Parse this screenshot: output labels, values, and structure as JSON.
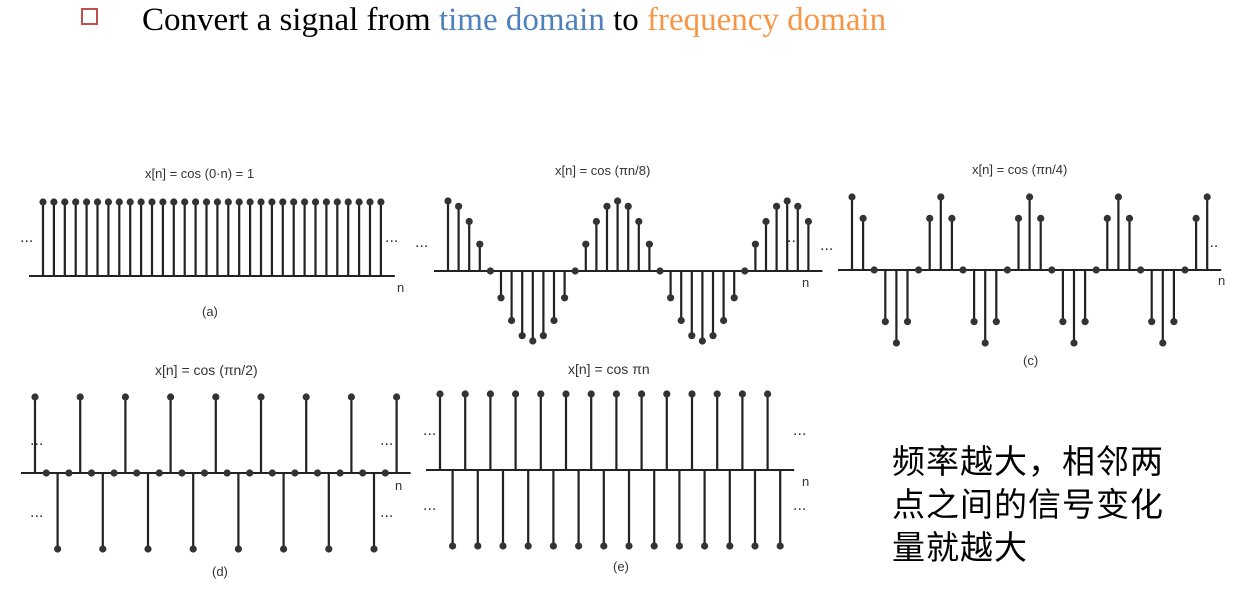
{
  "header": {
    "prefix": "Convert a signal from ",
    "time_domain": "time domain",
    "middle": " to ",
    "freq_domain": "frequency domain",
    "colors": {
      "bullet": "#c0504d",
      "time": "#4f81bd",
      "freq": "#f79646"
    }
  },
  "panels": [
    {
      "id": "a",
      "formula": "x[n] = cos (0·n) = 1",
      "caption": "(a)",
      "axis_label": "n",
      "ellipsis": "...",
      "period": null,
      "samples": 32
    },
    {
      "id": "b",
      "formula": "x[n] = cos (πn/8)",
      "caption": "",
      "axis_label": "n",
      "ellipsis": "...",
      "period": 16,
      "samples": 35
    },
    {
      "id": "c",
      "formula": "x[n] = cos (πn/4)",
      "caption": "(c)",
      "axis_label": "n",
      "ellipsis": "...",
      "period": 8,
      "samples": 33
    },
    {
      "id": "d",
      "formula": "x[n] = cos (πn/2)",
      "caption": "(d)",
      "axis_label": "n",
      "ellipsis": "...",
      "period": 4,
      "samples": 33
    },
    {
      "id": "e",
      "formula": "x[n] = cos πn",
      "caption": "(e)",
      "axis_label": "n",
      "ellipsis": "...",
      "period": 2,
      "samples": 28
    }
  ],
  "note": {
    "lines": [
      "频率越大，相邻两",
      "点之间的信号变化",
      "量就越大"
    ]
  }
}
